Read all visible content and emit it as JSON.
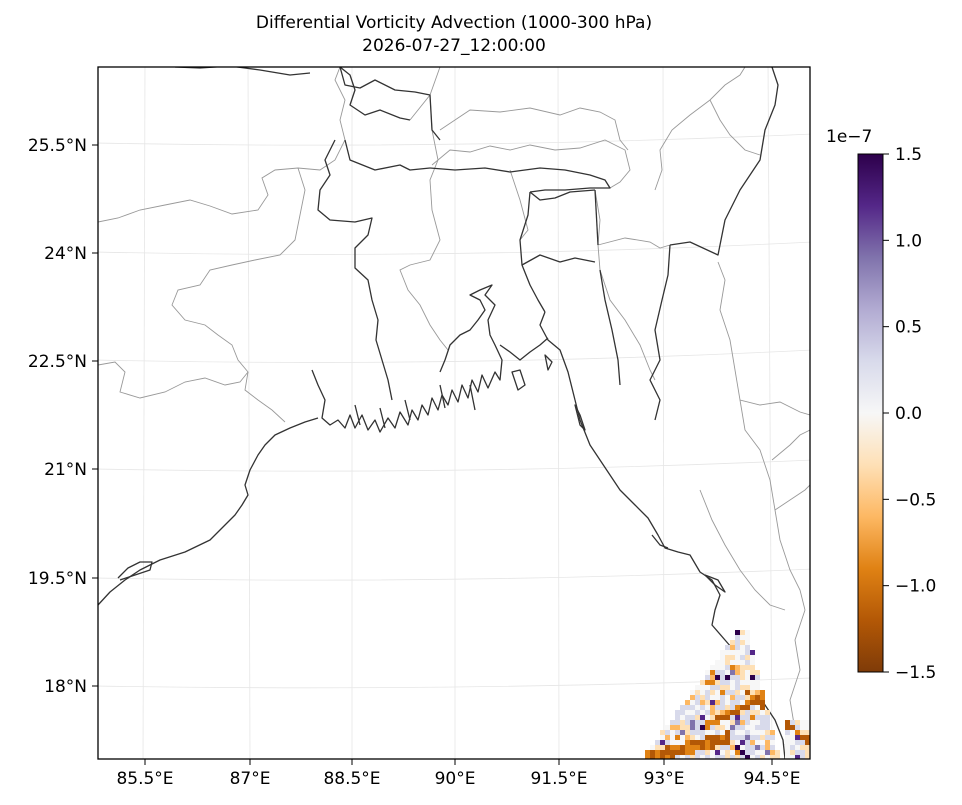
{
  "title": "Differential Vorticity Advection (1000-300 hPa)",
  "subtitle": "2026-07-27_12:00:00",
  "axes": {
    "lon_labels": [
      "85.5°E",
      "87°E",
      "88.5°E",
      "90°E",
      "91.5°E",
      "93°E",
      "94.5°E"
    ],
    "lat_labels": [
      "25.5°N",
      "24°N",
      "22.5°N",
      "21°N",
      "19.5°N",
      "18°N"
    ]
  },
  "colorbar": {
    "exponent_label": "1e−7",
    "tick_labels": [
      "1.5",
      "1.0",
      "0.5",
      "0.0",
      "−0.5",
      "−1.0",
      "−1.5"
    ],
    "tick_values": [
      1.5,
      1.0,
      0.5,
      0.0,
      -0.5,
      -1.0,
      -1.5
    ],
    "vmin": -1.5,
    "vmax": 1.5,
    "colormap": [
      "#7f3b08",
      "#b35806",
      "#e08214",
      "#fdb863",
      "#fee0b6",
      "#f7f7f7",
      "#d8daeb",
      "#b2abd2",
      "#8073ac",
      "#542788",
      "#2d004b"
    ]
  },
  "colors": {
    "coastline": "#333333",
    "state_borders": "#999999",
    "gridlines": "#e6e6e6"
  }
}
